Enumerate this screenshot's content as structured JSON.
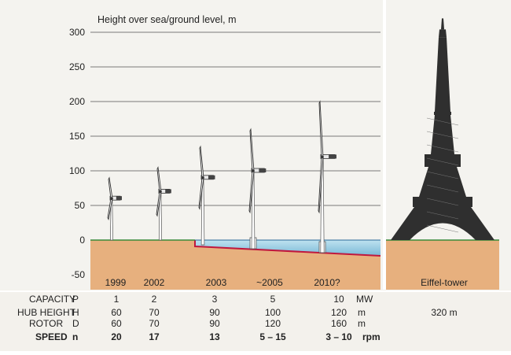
{
  "chart_data": {
    "type": "table",
    "ylabel": "Height over sea/ground level, m",
    "yticks": [
      300,
      250,
      200,
      150,
      100,
      50,
      0,
      -50
    ],
    "ylim": [
      -50,
      300
    ],
    "grid": true,
    "turbines": [
      {
        "year": "1999",
        "capacity": "1",
        "hub_height": "60",
        "rotor": "60",
        "speed": "20",
        "offshore": false
      },
      {
        "year": "2002",
        "capacity": "2",
        "hub_height": "70",
        "rotor": "70",
        "speed": "17",
        "offshore": false
      },
      {
        "year": "2003",
        "capacity": "3",
        "hub_height": "90",
        "rotor": "90",
        "speed": "13",
        "offshore": false
      },
      {
        "year": "~2005",
        "capacity": "5",
        "hub_height": "100",
        "rotor": "120",
        "speed": "5 – 15",
        "offshore": true
      },
      {
        "year": "2010?",
        "capacity": "10",
        "hub_height": "120",
        "rotor": "160",
        "speed": "3 – 10",
        "offshore": true
      }
    ],
    "reference": {
      "label": "Eiffel-tower",
      "height": 320,
      "height_text": "320 m"
    },
    "rows": [
      {
        "label": "CAPACITY",
        "symbol": "P",
        "unit": "MW"
      },
      {
        "label": "HUB HEIGHT",
        "symbol": "H",
        "unit": "m"
      },
      {
        "label": "ROTOR",
        "symbol": "D",
        "unit": "m"
      },
      {
        "label": "SPEED",
        "symbol": "n",
        "unit": "rpm"
      }
    ]
  },
  "colors": {
    "sky": "#f4f3ef",
    "ground": "#e7b07e",
    "ground_line": "#3a8a3a",
    "water": "#8cc6df",
    "seabed": "#c0183e",
    "tower": "#2f2f2f",
    "table_bg": "#f3f1ec"
  }
}
